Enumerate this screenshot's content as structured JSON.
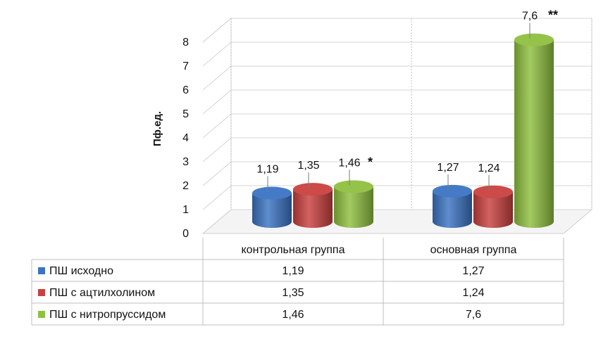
{
  "chart_data": {
    "type": "bar",
    "style": "3d-cylinder",
    "categories": [
      "контрольная группа",
      "основная группа"
    ],
    "ylabel": "Пф.ед.",
    "ylim": [
      0,
      8
    ],
    "yticks": [
      "0",
      "1",
      "2",
      "3",
      "4",
      "5",
      "6",
      "7",
      "8"
    ],
    "grid": true,
    "legend_placement": "data-table-left",
    "series": [
      {
        "name": "ПШ исходно",
        "color": "#3b74c3",
        "values": [
          1.19,
          1.27
        ],
        "labels": [
          "1,19",
          "1,27"
        ],
        "marks": [
          "",
          ""
        ]
      },
      {
        "name": "ПШ с ацтилхолином",
        "color": "#c9403e",
        "values": [
          1.35,
          1.24
        ],
        "labels": [
          "1,35",
          "1,24"
        ],
        "marks": [
          "",
          ""
        ]
      },
      {
        "name": "ПШ с нитропруссидом",
        "color": "#8fc03f",
        "values": [
          1.46,
          7.6
        ],
        "labels": [
          "1,46",
          "7,6"
        ],
        "marks": [
          "*",
          "**"
        ]
      }
    ]
  }
}
